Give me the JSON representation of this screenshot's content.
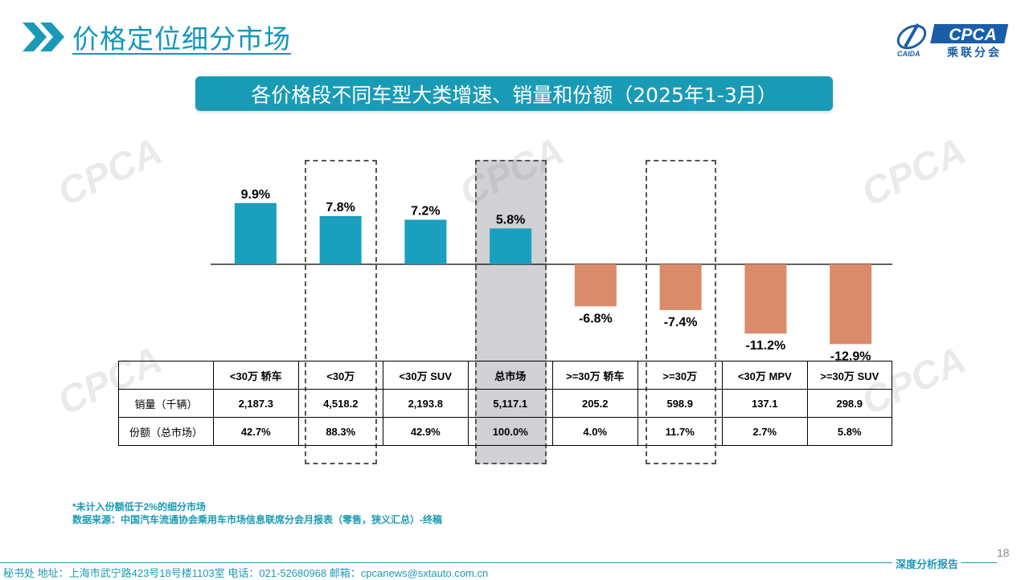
{
  "header": {
    "title": "价格定位细分市场"
  },
  "logo": {
    "brand": "CPCA",
    "subtitle": "乘联分会",
    "small": "CAIDA"
  },
  "banner": {
    "text": "各价格段不同车型大类增速、销量和份额（2025年1-3月）"
  },
  "chart_data": {
    "type": "bar",
    "title": "各价格段不同车型大类增速、销量和份额（2025年1-3月）",
    "categories": [
      "<30万 轿车",
      "<30万",
      "<30万 SUV",
      "总市场",
      ">=30万 轿车",
      ">=30万",
      "<30万 MPV",
      ">=30万 SUV"
    ],
    "values": [
      9.9,
      7.8,
      7.2,
      5.8,
      -6.8,
      -7.4,
      -11.2,
      -12.9
    ],
    "value_labels": [
      "9.9%",
      "7.8%",
      "7.2%",
      "5.8%",
      "-6.8%",
      "-7.4%",
      "-11.2%",
      "-12.9%"
    ],
    "unit": "%",
    "xlabel": "",
    "ylabel": "",
    "ylim": [
      -13,
      10
    ],
    "grid": false,
    "legend": "none",
    "colors": {
      "positive": "#1a9fbf",
      "negative": "#d98b6a"
    },
    "highlighted": [
      "<30万",
      "总市场",
      ">=30万"
    ]
  },
  "table": {
    "headers": [
      "",
      "<30万 轿车",
      "<30万",
      "<30万 SUV",
      "总市场",
      ">=30万 轿车",
      ">=30万",
      "<30万 MPV",
      ">=30万 SUV"
    ],
    "rows": [
      {
        "label": "销量（千辆）",
        "values": [
          "2,187.3",
          "4,518.2",
          "2,193.8",
          "5,117.1",
          "205.2",
          "598.9",
          "137.1",
          "298.9"
        ]
      },
      {
        "label": "份额（总市场）",
        "values": [
          "42.7%",
          "88.3%",
          "42.9%",
          "100.0%",
          "4.0%",
          "11.7%",
          "2.7%",
          "5.8%"
        ]
      }
    ]
  },
  "notes": {
    "line1": "*未计入份额低于2%的细分市场",
    "line2": "数据来源：中国汽车流通协会乘用车市场信息联席分会月报表（零售，狭义汇总）-终稿"
  },
  "footer": {
    "contact": "秘书处   地址：上海市武宁路423号18号楼1103室  电话：021-52680968   邮箱：cpcanews@sxtauto.com.cn",
    "report": "深度分析报告",
    "page": "18"
  }
}
